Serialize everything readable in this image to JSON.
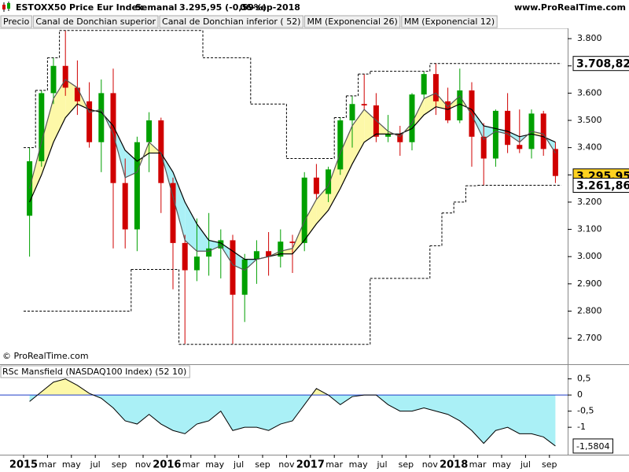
{
  "header": {
    "title": "ESTOXX50 Price Eur Index",
    "period": "Semanal",
    "quote": "3.295,95 (-0,59%)",
    "date": "06-sep-2018",
    "site": "www.ProRealTime.com"
  },
  "copyright": "© ProRealTime.com",
  "chart_data": [
    {
      "type": "candlestick",
      "name": "Precio",
      "up_color": "#00a000",
      "down_color": "#d00000",
      "x": [
        "2015-01",
        "2015-02",
        "2015-03",
        "2015-04",
        "2015-05",
        "2015-06",
        "2015-07",
        "2015-08",
        "2015-09",
        "2015-10",
        "2015-11",
        "2015-12",
        "2016-01",
        "2016-02",
        "2016-03",
        "2016-04",
        "2016-05",
        "2016-06",
        "2016-07",
        "2016-08",
        "2016-09",
        "2016-10",
        "2016-11",
        "2016-12",
        "2017-01",
        "2017-02",
        "2017-03",
        "2017-04",
        "2017-05",
        "2017-06",
        "2017-07",
        "2017-08",
        "2017-09",
        "2017-10",
        "2017-11",
        "2017-12",
        "2018-01",
        "2018-02",
        "2018-03",
        "2018-04",
        "2018-05",
        "2018-06",
        "2018-07",
        "2018-08",
        "2018-09"
      ],
      "open": [
        3150,
        3350,
        3600,
        3700,
        3620,
        3570,
        3420,
        3600,
        3270,
        3100,
        3420,
        3500,
        3270,
        3050,
        2950,
        3000,
        3030,
        3060,
        2860,
        2990,
        3020,
        3000,
        3055,
        3050,
        3290,
        3230,
        3320,
        3500,
        3560,
        3555,
        3440,
        3450,
        3420,
        3595,
        3670,
        3570,
        3500,
        3610,
        3440,
        3360,
        3535,
        3410,
        3395,
        3525,
        3395
      ],
      "high": [
        3400,
        3610,
        3730,
        3830,
        3720,
        3640,
        3650,
        3690,
        3360,
        3440,
        3530,
        3510,
        3290,
        3080,
        3140,
        3160,
        3100,
        3080,
        3010,
        3060,
        3090,
        3100,
        3080,
        3310,
        3340,
        3330,
        3510,
        3590,
        3670,
        3600,
        3520,
        3480,
        3600,
        3680,
        3710,
        3620,
        3690,
        3640,
        3490,
        3540,
        3600,
        3540,
        3540,
        3535,
        3420
      ],
      "low": [
        3000,
        3330,
        3560,
        3590,
        3520,
        3400,
        3310,
        3030,
        3030,
        3020,
        3310,
        3160,
        2880,
        2680,
        2910,
        2930,
        2920,
        2680,
        2760,
        2900,
        2930,
        2960,
        2940,
        3020,
        3210,
        3200,
        3300,
        3400,
        3540,
        3420,
        3420,
        3370,
        3390,
        3580,
        3520,
        3490,
        3490,
        3330,
        3260,
        3330,
        3380,
        3380,
        3360,
        3370,
        3270
      ],
      "close": [
        3350,
        3600,
        3700,
        3620,
        3570,
        3420,
        3600,
        3270,
        3100,
        3420,
        3500,
        3270,
        3050,
        2950,
        3000,
        3030,
        3060,
        2860,
        2990,
        3020,
        3000,
        3055,
        3050,
        3290,
        3230,
        3320,
        3500,
        3560,
        3555,
        3440,
        3450,
        3420,
        3595,
        3670,
        3570,
        3500,
        3610,
        3440,
        3360,
        3535,
        3410,
        3395,
        3525,
        3395,
        3295.95
      ],
      "value_labels": [
        null,
        null,
        null,
        null,
        null,
        null,
        null,
        null,
        null,
        null,
        null,
        null,
        null,
        null,
        null,
        null,
        null,
        null,
        null,
        null,
        null,
        null,
        null,
        null,
        null,
        null,
        null,
        null,
        null,
        null,
        null,
        null,
        null,
        null,
        null,
        null,
        null,
        null,
        null,
        null,
        null,
        null,
        null,
        null,
        "3.295,95"
      ],
      "label_color": "#ffd21f",
      "fill_up": "#fdf8a8",
      "fill_down": "#aaf0f6",
      "series": [
        {
          "name": "Canal de Donchian superior",
          "color": "#000000",
          "style": "step",
          "values": [
            3400,
            3610,
            3730,
            3830,
            3830,
            3830,
            3830,
            3830,
            3830,
            3830,
            3830,
            3830,
            3830,
            3830,
            3830,
            3730,
            3730,
            3730,
            3730,
            3560,
            3560,
            3560,
            3360,
            3360,
            3360,
            3360,
            3510,
            3590,
            3670,
            3680,
            3680,
            3680,
            3680,
            3680,
            3708.82,
            3708.82,
            3708.82,
            3708.82,
            3708.82,
            3708.82,
            3708.82,
            3708.82,
            3708.82,
            3708.82,
            3708.82
          ],
          "value_labels": [
            null,
            null,
            null,
            null,
            null,
            null,
            null,
            null,
            null,
            null,
            null,
            null,
            null,
            null,
            null,
            null,
            null,
            null,
            null,
            null,
            null,
            null,
            null,
            null,
            null,
            null,
            null,
            null,
            null,
            null,
            null,
            null,
            null,
            null,
            null,
            null,
            null,
            null,
            null,
            null,
            null,
            null,
            null,
            null,
            "3.708,82"
          ]
        },
        {
          "name": "Canal de Donchian inferior ( 52)",
          "color": "#000000",
          "style": "step",
          "values": [
            2800,
            2800,
            2800,
            2800,
            2800,
            2800,
            2800,
            2800,
            2800,
            2953,
            2953,
            2953,
            2953,
            2678,
            2678,
            2678,
            2678,
            2678,
            2678,
            2678,
            2678,
            2678,
            2678,
            2678,
            2678,
            2678,
            2678,
            2678,
            2678,
            2920,
            2920,
            2920,
            2920,
            2920,
            3040,
            3160,
            3200,
            3260,
            3261.86,
            3261.86,
            3261.86,
            3261.86,
            3261.86,
            3261.86,
            3261.86
          ],
          "value_labels": [
            null,
            null,
            null,
            null,
            null,
            null,
            null,
            null,
            null,
            null,
            null,
            null,
            null,
            null,
            null,
            null,
            null,
            null,
            null,
            null,
            null,
            null,
            null,
            null,
            null,
            null,
            null,
            null,
            null,
            null,
            null,
            null,
            null,
            null,
            null,
            null,
            null,
            null,
            null,
            null,
            null,
            null,
            null,
            null,
            "3.261,86"
          ]
        },
        {
          "name": "MM (Exponencial 26)",
          "color": "#000000",
          "style": "line",
          "values": [
            3200,
            3300,
            3420,
            3510,
            3560,
            3540,
            3530,
            3480,
            3390,
            3350,
            3380,
            3380,
            3310,
            3200,
            3120,
            3060,
            3050,
            3020,
            2990,
            2990,
            3000,
            3010,
            3010,
            3060,
            3120,
            3170,
            3250,
            3340,
            3420,
            3450,
            3450,
            3450,
            3470,
            3520,
            3550,
            3540,
            3560,
            3540,
            3480,
            3470,
            3460,
            3440,
            3450,
            3440,
            3420
          ]
        },
        {
          "name": "MM (Exponencial 12)",
          "color": "#555555",
          "style": "line",
          "values": [
            3250,
            3420,
            3580,
            3650,
            3620,
            3530,
            3540,
            3450,
            3290,
            3310,
            3420,
            3380,
            3220,
            3060,
            3020,
            3020,
            3040,
            2970,
            2950,
            2990,
            3000,
            3020,
            3030,
            3130,
            3210,
            3260,
            3380,
            3480,
            3540,
            3500,
            3460,
            3440,
            3490,
            3580,
            3600,
            3550,
            3590,
            3520,
            3430,
            3460,
            3450,
            3420,
            3460,
            3450,
            3380
          ]
        }
      ],
      "ylim": [
        2605,
        3835
      ],
      "yticks": [
        {
          "value": 2700,
          "label": "2.700"
        },
        {
          "value": 2800,
          "label": "2.800"
        },
        {
          "value": 2900,
          "label": "2.900"
        },
        {
          "value": 3000,
          "label": "3.000"
        },
        {
          "value": 3100,
          "label": "3.100"
        },
        {
          "value": 3200,
          "label": "3.200"
        },
        {
          "value": 3300,
          "label": "3.300"
        },
        {
          "value": 3400,
          "label": "3.400"
        },
        {
          "value": 3500,
          "label": "3.500"
        },
        {
          "value": 3600,
          "label": "3.600"
        },
        {
          "value": 3700,
          "label": "3.700"
        },
        {
          "value": 3800,
          "label": "3.800"
        }
      ]
    },
    {
      "type": "area",
      "title": "RSc Mansfield (NASDAQ100 Index) (52 10)",
      "fill_up": "#fdf8a8",
      "fill_down": "#aaf0f6",
      "zero_color": "#1f3cc8",
      "x": [
        "2015-01",
        "2015-02",
        "2015-03",
        "2015-04",
        "2015-05",
        "2015-06",
        "2015-07",
        "2015-08",
        "2015-09",
        "2015-10",
        "2015-11",
        "2015-12",
        "2016-01",
        "2016-02",
        "2016-03",
        "2016-04",
        "2016-05",
        "2016-06",
        "2016-07",
        "2016-08",
        "2016-09",
        "2016-10",
        "2016-11",
        "2016-12",
        "2017-01",
        "2017-02",
        "2017-03",
        "2017-04",
        "2017-05",
        "2017-06",
        "2017-07",
        "2017-08",
        "2017-09",
        "2017-10",
        "2017-11",
        "2017-12",
        "2018-01",
        "2018-02",
        "2018-03",
        "2018-04",
        "2018-05",
        "2018-06",
        "2018-07",
        "2018-08",
        "2018-09"
      ],
      "values": [
        -0.2,
        0.1,
        0.4,
        0.5,
        0.3,
        0.05,
        -0.1,
        -0.4,
        -0.8,
        -0.9,
        -0.6,
        -0.9,
        -1.1,
        -1.2,
        -0.9,
        -0.8,
        -0.5,
        -1.1,
        -1.0,
        -1.0,
        -1.1,
        -0.9,
        -0.8,
        -0.3,
        0.2,
        0.0,
        -0.3,
        -0.05,
        0,
        0.0,
        -0.3,
        -0.5,
        -0.5,
        -0.4,
        -0.5,
        -0.6,
        -0.8,
        -1.1,
        -1.5,
        -1.1,
        -1.0,
        -1.2,
        -1.2,
        -1.3,
        -1.5804
      ],
      "value_labels": [
        null,
        null,
        null,
        null,
        null,
        null,
        null,
        null,
        null,
        null,
        null,
        null,
        null,
        null,
        null,
        null,
        null,
        null,
        null,
        null,
        null,
        null,
        null,
        null,
        null,
        null,
        null,
        null,
        null,
        null,
        null,
        null,
        null,
        null,
        null,
        null,
        null,
        null,
        null,
        null,
        null,
        null,
        null,
        null,
        "-1,5804"
      ],
      "ylim": [
        -1.85,
        0.93
      ],
      "yticks": [
        {
          "value": 0.5,
          "label": "0,5"
        },
        0,
        {
          "value": -0.5,
          "label": "-0,5"
        },
        -1
      ],
      "xticks": [
        {
          "value": "2015-01",
          "label": "2015"
        },
        {
          "value": "2015-03",
          "label": "mar"
        },
        {
          "value": "2015-05",
          "label": "may"
        },
        {
          "value": "2015-07",
          "label": "jul"
        },
        {
          "value": "2015-09",
          "label": "sep"
        },
        {
          "value": "2015-11",
          "label": "nov"
        },
        {
          "value": "2016-01",
          "label": "2016"
        },
        {
          "value": "2016-03",
          "label": "mar"
        },
        {
          "value": "2016-05",
          "label": "may"
        },
        {
          "value": "2016-07",
          "label": "jul"
        },
        {
          "value": "2016-09",
          "label": "sep"
        },
        {
          "value": "2016-11",
          "label": "nov"
        },
        {
          "value": "2017-01",
          "label": "2017"
        },
        {
          "value": "2017-03",
          "label": "mar"
        },
        {
          "value": "2017-05",
          "label": "may"
        },
        {
          "value": "2017-07",
          "label": "jul"
        },
        {
          "value": "2017-09",
          "label": "sep"
        },
        {
          "value": "2017-11",
          "label": "nov"
        },
        {
          "value": "2018-01",
          "label": "2018"
        },
        {
          "value": "2018-03",
          "label": "mar"
        },
        {
          "value": "2018-05",
          "label": "may"
        },
        {
          "value": "2018-07",
          "label": "jul"
        },
        {
          "value": "2018-09",
          "label": "sep"
        }
      ]
    }
  ]
}
